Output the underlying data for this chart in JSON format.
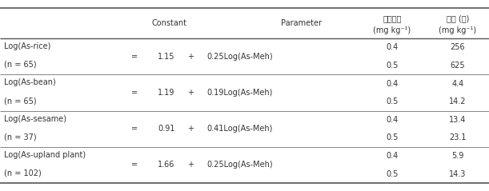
{
  "figsize": [
    6.11,
    2.39
  ],
  "dpi": 100,
  "header": {
    "col2": "Constant",
    "col3": "Parameter",
    "col4_line1": "비소기준",
    "col4_line2": "(mg kg⁻¹)",
    "col5_line1": "기준 (안)",
    "col5_line2": "(mg kg⁻¹)"
  },
  "rows": [
    {
      "label_line1": "Log(As-rice)",
      "label_line2": "(n = 65)",
      "constant": "1.15",
      "parameter": "0.25Log(As-Meh)",
      "bio_vals": [
        "0.4",
        "0.5"
      ],
      "std_vals": [
        "256",
        "625"
      ]
    },
    {
      "label_line1": "Log(As-bean)",
      "label_line2": "(n = 65)",
      "constant": "1.19",
      "parameter": "0.19Log(As-Meh)",
      "bio_vals": [
        "0.4",
        "0.5"
      ],
      "std_vals": [
        "4.4",
        "14.2"
      ]
    },
    {
      "label_line1": "Log(As-sesame)",
      "label_line2": "(n = 37)",
      "constant": "0.91",
      "parameter": "0.41Log(As-Meh)",
      "bio_vals": [
        "0.4",
        "0.5"
      ],
      "std_vals": [
        "13.4",
        "23.1"
      ]
    },
    {
      "label_line1": "Log(As-upland plant)",
      "label_line2": "(n = 102)",
      "constant": "1.66",
      "parameter": "0.25Log(As-Meh)",
      "bio_vals": [
        "0.4",
        "0.5"
      ],
      "std_vals": [
        "5.9",
        "14.3"
      ]
    }
  ],
  "bg_color": "#ffffff",
  "text_color": "#333333",
  "line_color": "#555555",
  "font_size": 7.0,
  "header_font_size": 7.0
}
